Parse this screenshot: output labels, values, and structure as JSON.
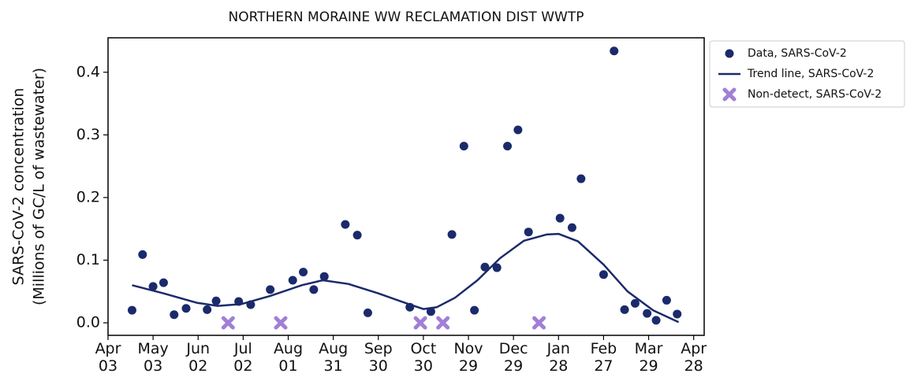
{
  "chart_data": {
    "type": "scatter",
    "title": "NORTHERN MORAINE WW RECLAMATION DIST WWTP",
    "y_label": [
      "SARS-CoV-2 concentration",
      "(Millions of GC/L of wastewater)"
    ],
    "xlim": [
      "Apr 03",
      "May 05"
    ],
    "xticks": [
      "Apr 03",
      "May 03",
      "Jun 02",
      "Jul 02",
      "Aug 01",
      "Aug 31",
      "Sep 30",
      "Oct 30",
      "Nov 29",
      "Dec 29",
      "Jan 28",
      "Feb 27",
      "Mar 29",
      "Apr 28"
    ],
    "ylim": [
      -0.02,
      0.455
    ],
    "yticks": [
      {
        "value": 0,
        "label": "0.0"
      },
      0.1,
      0.2,
      0.3,
      0.4
    ],
    "legend": "outside right",
    "series": [
      {
        "name": "Data, SARS-CoV-2",
        "type": "scatter",
        "color": "#1b2a6b",
        "x": [
          "Apr 19",
          "Apr 26",
          "May 03",
          "May 10",
          "May 17",
          "May 25",
          "Jun 08",
          "Jun 14",
          "Jun 29",
          "Jul 07",
          "Jul 20",
          "Aug 04",
          "Aug 11",
          "Aug 18",
          "Aug 25",
          "Sep 08",
          "Sep 16",
          "Sep 23",
          "Oct 21",
          "Nov 04",
          "Nov 18",
          "Nov 26",
          "Dec 03",
          "Dec 10",
          "Dec 18",
          "Dec 25",
          "Jan 01",
          "Jan 08",
          "Jan 29",
          "Feb 06",
          "Feb 12",
          "Feb 27",
          "Mar 06",
          "Mar 13",
          "Mar 20",
          "Mar 28",
          "Apr 03",
          "Apr 10",
          "Apr 17"
        ],
        "values": [
          0.02,
          0.109,
          0.058,
          0.064,
          0.013,
          0.023,
          0.021,
          0.035,
          0.034,
          0.029,
          0.053,
          0.068,
          0.081,
          0.053,
          0.074,
          0.157,
          0.14,
          0.016,
          0.025,
          0.018,
          0.141,
          0.282,
          0.02,
          0.089,
          0.088,
          0.282,
          0.308,
          0.145,
          0.167,
          0.152,
          0.23,
          0.077,
          0.434,
          0.021,
          0.031,
          0.015,
          0.004,
          0.036,
          0.014
        ]
      },
      {
        "name": "Trend line, SARS-CoV-2",
        "type": "line",
        "color": "#1b2a6b",
        "x": [
          "Apr 19",
          "May 10",
          "Jun 01",
          "Jun 15",
          "Jul 01",
          "Jul 20",
          "Aug 10",
          "Aug 24",
          "Sep 10",
          "Sep 30",
          "Oct 20",
          "Oct 30",
          "Nov 08",
          "Nov 20",
          "Dec 05",
          "Dec 20",
          "Jan 05",
          "Jan 20",
          "Jan 28",
          "Feb 10",
          "Feb 27",
          "Mar 15",
          "Apr 01",
          "Apr 18"
        ],
        "values": [
          0.06,
          0.047,
          0.032,
          0.027,
          0.03,
          0.043,
          0.06,
          0.068,
          0.062,
          0.047,
          0.03,
          0.022,
          0.025,
          0.04,
          0.068,
          0.103,
          0.131,
          0.141,
          0.142,
          0.13,
          0.093,
          0.05,
          0.02,
          0.001
        ]
      },
      {
        "name": "Non-detect, SARS-CoV-2",
        "type": "cross",
        "color": "#a27fd6",
        "x": [
          "Jun 22",
          "Jul 27",
          "Oct 28",
          "Nov 12",
          "Jan 15"
        ],
        "values": [
          0,
          0,
          0,
          0,
          0
        ]
      }
    ]
  }
}
